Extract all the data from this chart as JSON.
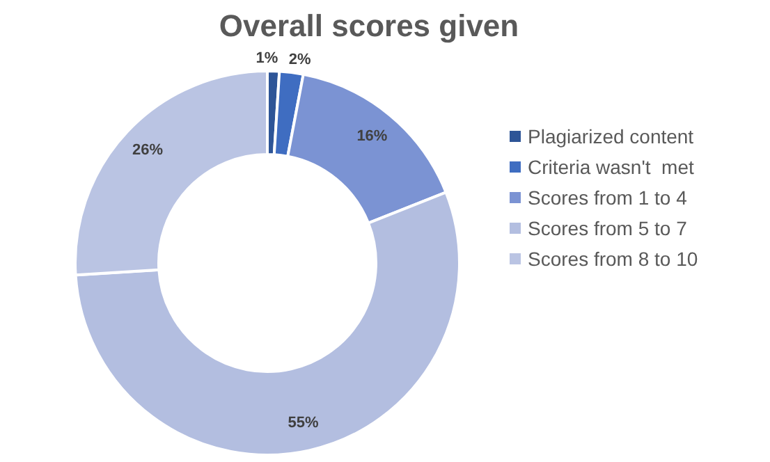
{
  "chart_data": {
    "type": "donut",
    "title": "Overall scores given",
    "categories": [
      "Plagiarized content",
      "Criteria wasn't  met",
      "Scores from 1 to 4",
      "Scores from 5 to 7",
      "Scores from 8 to 10"
    ],
    "values": [
      1,
      2,
      16,
      55,
      26
    ],
    "colors": [
      "#2e5597",
      "#3f6dc1",
      "#7b93d3",
      "#b3bee0",
      "#bac4e3"
    ],
    "value_labels": [
      "1%",
      "2%",
      "16%",
      "55%",
      "26%"
    ],
    "legend": "right"
  }
}
